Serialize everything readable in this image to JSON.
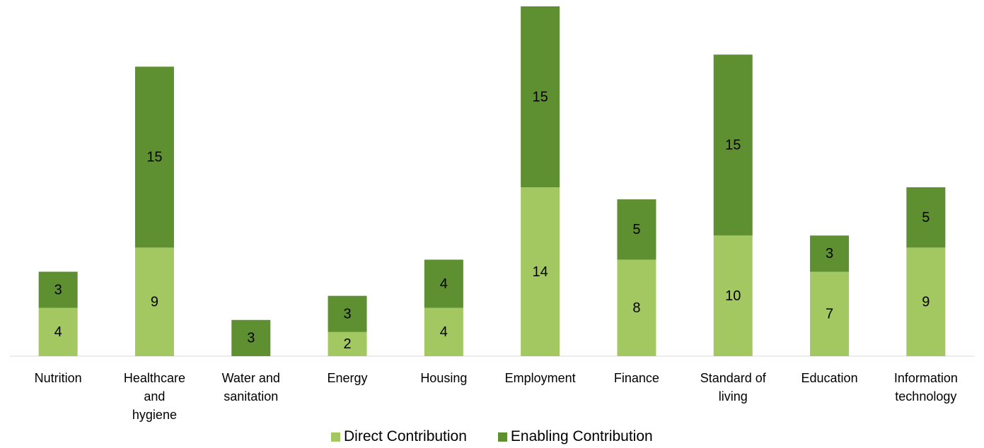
{
  "chart_data": {
    "type": "stacked_bar",
    "categories": [
      "Nutrition",
      "Healthcare and hygiene",
      "Water and sanitation",
      "Energy",
      "Housing",
      "Employment",
      "Finance",
      "Standard of living",
      "Education",
      "Information technology"
    ],
    "series": [
      {
        "name": "Direct Contribution",
        "color": "#a4c861",
        "values": [
          4,
          9,
          0,
          2,
          4,
          14,
          8,
          10,
          7,
          9
        ]
      },
      {
        "name": "Enabling Contribution",
        "color": "#5e9032",
        "values": [
          3,
          15,
          3,
          3,
          4,
          15,
          5,
          15,
          3,
          5
        ]
      }
    ],
    "legend": "bottom"
  }
}
